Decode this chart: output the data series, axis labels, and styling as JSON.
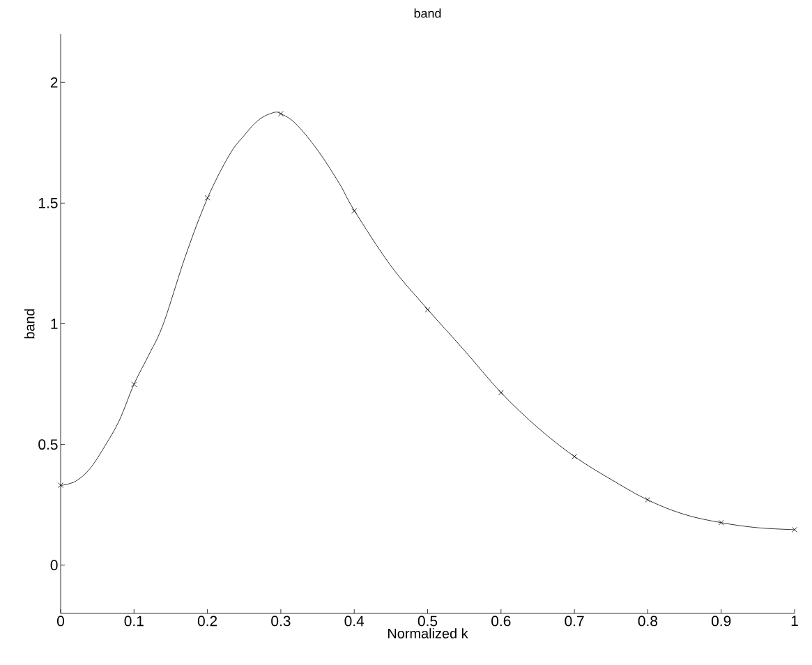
{
  "chart_data": {
    "type": "line",
    "title": "band",
    "xlabel": "Normalized k",
    "ylabel": "band",
    "xlim": [
      0,
      1
    ],
    "ylim": [
      -0.2,
      2.2
    ],
    "xticks": [
      0,
      0.1,
      0.2,
      0.3,
      0.4,
      0.5,
      0.6,
      0.7,
      0.8,
      0.9,
      1
    ],
    "yticks": [
      0,
      0.5,
      1,
      1.5,
      2
    ],
    "grid": false,
    "series": [
      {
        "color": "#000000",
        "marker": "none",
        "line_style": "solid",
        "x": [
          0,
          0.02,
          0.04,
          0.06,
          0.08,
          0.1,
          0.12,
          0.14,
          0.17,
          0.2,
          0.23,
          0.25,
          0.27,
          0.29,
          0.3,
          0.32,
          0.35,
          0.38,
          0.4,
          0.45,
          0.5,
          0.55,
          0.6,
          0.65,
          0.7,
          0.75,
          0.8,
          0.85,
          0.9,
          0.95,
          1
        ],
        "values": [
          0.33,
          0.347,
          0.4,
          0.492,
          0.6,
          0.75,
          0.87,
          1.0,
          1.28,
          1.52,
          1.7,
          1.78,
          1.845,
          1.875,
          1.87,
          1.83,
          1.72,
          1.58,
          1.47,
          1.24,
          1.06,
          0.89,
          0.715,
          0.57,
          0.45,
          0.355,
          0.27,
          0.21,
          0.176,
          0.155,
          0.147
        ]
      },
      {
        "type": "scatter",
        "color": "#000000",
        "marker": "cross",
        "x": [
          0,
          0.1,
          0.2,
          0.3,
          0.4,
          0.5,
          0.6,
          0.7,
          0.8,
          0.9,
          1
        ],
        "values": [
          0.331,
          0.749,
          1.522,
          1.87,
          1.467,
          1.058,
          0.715,
          0.45,
          0.271,
          0.176,
          0.147
        ]
      }
    ]
  }
}
